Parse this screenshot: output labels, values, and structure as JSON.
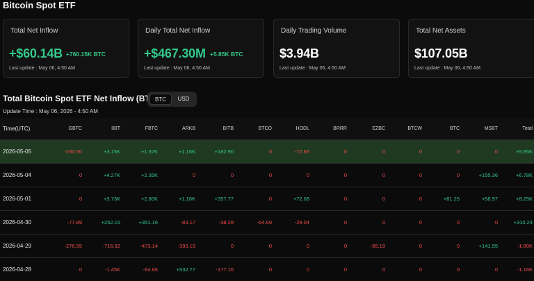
{
  "page_title": "Bitcoin Spot ETF",
  "cards": [
    {
      "label": "Total Net Inflow",
      "value": "+$60.14B",
      "sub": "+760.15K BTC",
      "update": "Last update : May 06, 4:50 AM"
    },
    {
      "label": "Daily Total Net Inflow",
      "value": "+$467.30M",
      "sub": "+5.85K BTC",
      "update": "Last update : May 06, 4:50 AM"
    },
    {
      "label": "Daily Trading Volume",
      "value": "$3.94B",
      "sub": "",
      "update": "Last update : May 06, 4:50 AM"
    },
    {
      "label": "Total Net Assets",
      "value": "$107.05B",
      "sub": "",
      "update": "Last update : May 06, 4:50 AM"
    }
  ],
  "section_title": "Total Bitcoin Spot ETF Net Inflow (BTC)",
  "toggle": {
    "btc": "BTC",
    "usd": "USD",
    "selected": "BTC"
  },
  "update_time": "Update Time : May 06, 2026 - 4:50 AM",
  "table": {
    "headers": [
      "Time(UTC)",
      "GBTC",
      "IBIT",
      "FBTC",
      "ARKB",
      "BITB",
      "BTCO",
      "HODL",
      "BRRR",
      "EZBC",
      "BTCW",
      "BTC",
      "MSBT",
      "Total"
    ],
    "rows": [
      [
        "2026-05-05",
        "-230.50",
        "+3.15K",
        "+1.67K",
        "+1.16K",
        "+182.90",
        "0",
        "-72.66",
        "0",
        "0",
        "0",
        "0",
        "0",
        "+5.85K"
      ],
      [
        "2026-05-04",
        "0",
        "+4.27K",
        "+2.35K",
        "0",
        "0",
        "0",
        "0",
        "0",
        "0",
        "0",
        "0",
        "+155.36",
        "+6.78K"
      ],
      [
        "2026-05-01",
        "0",
        "+3.73K",
        "+2.80K",
        "+1.16K",
        "+357.77",
        "0",
        "+72.08",
        "0",
        "0",
        "0",
        "+81.25",
        "+58.97",
        "+8.25K"
      ],
      [
        "2026-04-30",
        "-77.89",
        "+252.15",
        "+351.16",
        "-83.17",
        "-38.28",
        "-64.69",
        "-29.04",
        "0",
        "0",
        "0",
        "0",
        "0",
        "+310.24"
      ],
      [
        "2026-04-29",
        "-276.55",
        "-716.92",
        "-473.14",
        "-393.19",
        "0",
        "0",
        "0",
        "0",
        "-85.19",
        "0",
        "0",
        "+141.55",
        "-1.80K"
      ],
      [
        "2026-04-28",
        "0",
        "-1.45K",
        "-64.66",
        "+532.77",
        "-177.16",
        "0",
        "0",
        "0",
        "0",
        "0",
        "0",
        "0",
        "-1.16K"
      ]
    ]
  }
}
